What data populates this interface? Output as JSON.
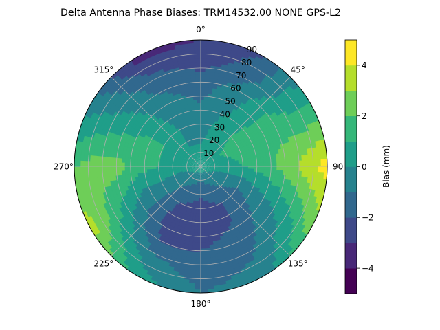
{
  "chart_data": {
    "type": "heatmap",
    "subtype": "polar-filled-contour",
    "title": "Delta Antenna Phase Biases: TRM14532.00     NONE GPS-L2",
    "projection": "polar",
    "theta_zero": "N",
    "theta_direction": "clockwise",
    "radial_range": [
      0,
      90
    ],
    "radial_ticks": [
      10,
      20,
      30,
      40,
      50,
      60,
      70,
      80,
      90
    ],
    "radial_tick_labels": [
      "10",
      "20",
      "30",
      "40",
      "50",
      "60",
      "70",
      "80",
      "90"
    ],
    "angular_ticks": [
      0,
      45,
      90,
      135,
      180,
      225,
      270,
      315
    ],
    "angular_tick_labels": [
      "0°",
      "45°",
      "90",
      "135°",
      "180°",
      "225°",
      "270°",
      "315°"
    ],
    "grid": true,
    "colorbar": {
      "label": "Bias (mm)",
      "range": [
        -5,
        5
      ],
      "levels": [
        -5,
        -4,
        -3,
        -2,
        -1,
        0,
        1,
        2,
        3,
        4,
        5
      ],
      "ticks": [
        -4,
        -2,
        0,
        2,
        4
      ],
      "tick_labels": [
        "−4",
        "−2",
        "0",
        "2",
        "4"
      ],
      "colormap": "viridis",
      "colors": [
        "#440154",
        "#482878",
        "#3e4989",
        "#31688e",
        "#26828e",
        "#1f9e89",
        "#35b779",
        "#6ece58",
        "#b5de2b",
        "#fde725"
      ]
    },
    "field": {
      "azimuth_deg": [
        0,
        30,
        60,
        90,
        120,
        150,
        180,
        210,
        240,
        270,
        300,
        330
      ],
      "radius_deg": [
        0,
        15,
        30,
        45,
        60,
        75,
        90
      ],
      "values": [
        [
          0.5,
          0.5,
          0.5,
          0.5,
          0.5,
          0.5,
          0.5,
          0.5,
          0.5,
          0.5,
          0.5,
          0.5
        ],
        [
          0.0,
          0.5,
          1.0,
          0.5,
          -0.5,
          -1.0,
          -1.5,
          -1.0,
          -0.5,
          0.5,
          0.5,
          0.0
        ],
        [
          -0.5,
          0.5,
          1.5,
          1.0,
          -1.0,
          -2.0,
          -2.5,
          -2.0,
          -0.5,
          1.0,
          1.0,
          0.0
        ],
        [
          -1.0,
          0.0,
          1.5,
          1.5,
          -0.5,
          -2.0,
          -2.5,
          -2.5,
          -0.5,
          1.5,
          1.0,
          -0.5
        ],
        [
          -1.5,
          -0.5,
          1.5,
          2.5,
          0.0,
          -1.5,
          -2.0,
          -2.0,
          0.5,
          2.5,
          0.5,
          -1.0
        ],
        [
          -2.5,
          -1.5,
          1.0,
          3.5,
          1.0,
          -1.0,
          -1.5,
          -0.5,
          2.0,
          2.5,
          0.0,
          -2.0
        ],
        [
          -3.0,
          -2.0,
          1.0,
          4.5,
          2.5,
          -0.5,
          -1.0,
          0.5,
          3.5,
          2.0,
          -0.5,
          -3.5
        ]
      ]
    }
  }
}
